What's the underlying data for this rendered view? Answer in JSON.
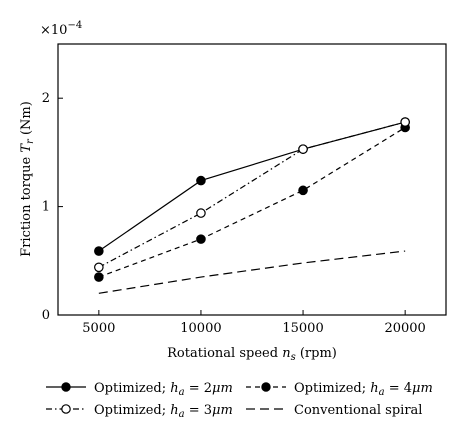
{
  "chart_data": {
    "type": "line",
    "title": "",
    "xlabel": "Rotational speed",
    "xlabel_symbol": "n",
    "xlabel_sub": "s",
    "xlabel_unit": "(rpm)",
    "ylabel": "Friction torque",
    "ylabel_symbol": "T",
    "ylabel_sub": "r",
    "ylabel_unit": "(Nm)",
    "y_multiplier_base": "×10",
    "y_multiplier_exp": "−4",
    "x": [
      5000,
      10000,
      15000,
      20000
    ],
    "x_ticks": [
      "5000",
      "10000",
      "15000",
      "20000"
    ],
    "xlim": [
      3000,
      22000
    ],
    "ylim": [
      0,
      2.5
    ],
    "y_ticks": [
      0,
      1,
      2
    ],
    "y_tick_labels": [
      "0",
      "1",
      "2"
    ],
    "grid": false,
    "legend_position": "bottom",
    "series": [
      {
        "name_prefix": "Optimized;",
        "name_symbol": "h",
        "name_sub": "a",
        "name_value": "= 2",
        "name_unit": "μm",
        "values": [
          0.59,
          1.24,
          1.53,
          1.78
        ],
        "line_style": "solid",
        "marker": "filled-circle",
        "marker_at": [
          true,
          true,
          false,
          false
        ],
        "hollow_at": [
          false,
          false,
          true,
          true
        ]
      },
      {
        "name_prefix": "Optimized;",
        "name_symbol": "h",
        "name_sub": "a",
        "name_value": "= 3",
        "name_unit": "μm",
        "values": [
          0.44,
          0.94,
          1.53,
          1.78
        ],
        "line_style": "dash-dot",
        "marker": "open-circle",
        "marker_at": [
          true,
          true,
          true,
          true
        ]
      },
      {
        "name_prefix": "Optimized;",
        "name_symbol": "h",
        "name_sub": "a",
        "name_value": "= 4",
        "name_unit": "μm",
        "values": [
          0.35,
          0.7,
          1.15,
          1.73
        ],
        "line_style": "dashed",
        "marker": "filled-circle",
        "marker_at": [
          true,
          true,
          true,
          true
        ]
      },
      {
        "name": "Conventional spiral",
        "values": [
          0.2,
          0.35,
          0.48,
          0.59
        ],
        "line_style": "long-dash",
        "marker": "none"
      }
    ]
  }
}
